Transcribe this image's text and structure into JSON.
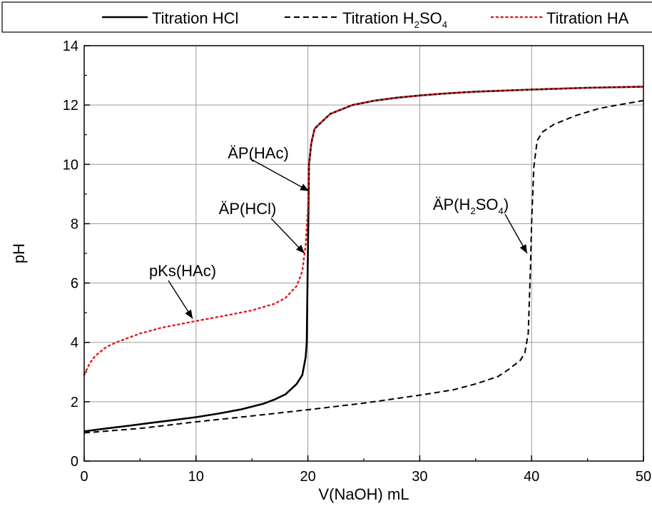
{
  "chart_data": {
    "type": "line",
    "xlabel": "V(NaOH) mL",
    "ylabel": "pH",
    "xlim": [
      0,
      50
    ],
    "ylim": [
      0,
      14
    ],
    "x_ticks": [
      0,
      10,
      20,
      30,
      40,
      50
    ],
    "y_ticks": [
      0,
      2,
      4,
      6,
      8,
      10,
      12,
      14
    ],
    "grid": true,
    "legend_position": "top",
    "series": [
      {
        "name": "Titration HCl",
        "name_sub": "",
        "name_tail": "",
        "style": "solid",
        "color": "#000000",
        "points": [
          [
            0,
            1.0
          ],
          [
            2,
            1.1
          ],
          [
            4,
            1.19
          ],
          [
            6,
            1.29
          ],
          [
            8,
            1.38
          ],
          [
            10,
            1.48
          ],
          [
            12,
            1.6
          ],
          [
            14,
            1.74
          ],
          [
            16,
            1.93
          ],
          [
            17,
            2.07
          ],
          [
            18,
            2.25
          ],
          [
            19,
            2.6
          ],
          [
            19.5,
            2.9
          ],
          [
            19.8,
            3.5
          ],
          [
            19.9,
            4.0
          ],
          [
            20,
            7.0
          ],
          [
            20.1,
            10.0
          ],
          [
            20.3,
            10.7
          ],
          [
            20.6,
            11.2
          ],
          [
            21,
            11.35
          ],
          [
            22,
            11.7
          ],
          [
            24,
            12.0
          ],
          [
            26,
            12.15
          ],
          [
            28,
            12.25
          ],
          [
            30,
            12.32
          ],
          [
            32,
            12.38
          ],
          [
            35,
            12.45
          ],
          [
            40,
            12.52
          ],
          [
            45,
            12.58
          ],
          [
            50,
            12.62
          ]
        ]
      },
      {
        "name": "Titration H",
        "name_sub": "2",
        "name_mid": "SO",
        "name_sub2": "4",
        "style": "dashed",
        "color": "#000000",
        "points": [
          [
            0,
            0.95
          ],
          [
            5,
            1.1
          ],
          [
            10,
            1.32
          ],
          [
            15,
            1.52
          ],
          [
            20,
            1.73
          ],
          [
            25,
            1.95
          ],
          [
            30,
            2.22
          ],
          [
            33,
            2.4
          ],
          [
            35,
            2.6
          ],
          [
            37,
            2.85
          ],
          [
            38,
            3.1
          ],
          [
            39,
            3.4
          ],
          [
            39.4,
            3.65
          ],
          [
            39.7,
            4.3
          ],
          [
            39.9,
            6.5
          ],
          [
            40,
            8.0
          ],
          [
            40.2,
            9.9
          ],
          [
            40.5,
            10.8
          ],
          [
            41,
            11.1
          ],
          [
            42,
            11.35
          ],
          [
            44,
            11.65
          ],
          [
            46,
            11.88
          ],
          [
            48,
            12.02
          ],
          [
            50,
            12.15
          ]
        ]
      },
      {
        "name": "Titration HA",
        "style": "dotted",
        "color": "#e11a1a",
        "points": [
          [
            0,
            2.9
          ],
          [
            0.5,
            3.3
          ],
          [
            1,
            3.55
          ],
          [
            2,
            3.85
          ],
          [
            3,
            4.02
          ],
          [
            5,
            4.3
          ],
          [
            7,
            4.5
          ],
          [
            10,
            4.72
          ],
          [
            13,
            4.93
          ],
          [
            15,
            5.08
          ],
          [
            17,
            5.3
          ],
          [
            18,
            5.5
          ],
          [
            19,
            5.9
          ],
          [
            19.5,
            6.4
          ],
          [
            19.8,
            7.3
          ],
          [
            20,
            8.5
          ],
          [
            20.1,
            10.0
          ],
          [
            20.3,
            10.7
          ],
          [
            20.6,
            11.2
          ],
          [
            21,
            11.35
          ],
          [
            22,
            11.7
          ],
          [
            24,
            12.0
          ],
          [
            26,
            12.15
          ],
          [
            28,
            12.25
          ],
          [
            30,
            12.32
          ],
          [
            32,
            12.38
          ],
          [
            35,
            12.45
          ],
          [
            40,
            12.52
          ],
          [
            45,
            12.58
          ],
          [
            50,
            12.62
          ]
        ]
      }
    ],
    "annotations": [
      {
        "label": "ÄP(HAc)",
        "label_sub": "",
        "label_tail": "",
        "arrow_to": [
          20.1,
          9.1
        ]
      },
      {
        "label": "ÄP(HCl)",
        "label_sub": "",
        "label_tail": "",
        "arrow_to": [
          19.7,
          7.0
        ]
      },
      {
        "label": "pKs(HAc)",
        "label_sub": "",
        "label_tail": "",
        "arrow_to": [
          9.7,
          4.8
        ]
      },
      {
        "label": "ÄP(H",
        "label_sub": "2",
        "label_mid": "SO",
        "label_sub2": "4",
        "label_tail": ")",
        "arrow_to": [
          39.6,
          7.0
        ]
      }
    ]
  }
}
